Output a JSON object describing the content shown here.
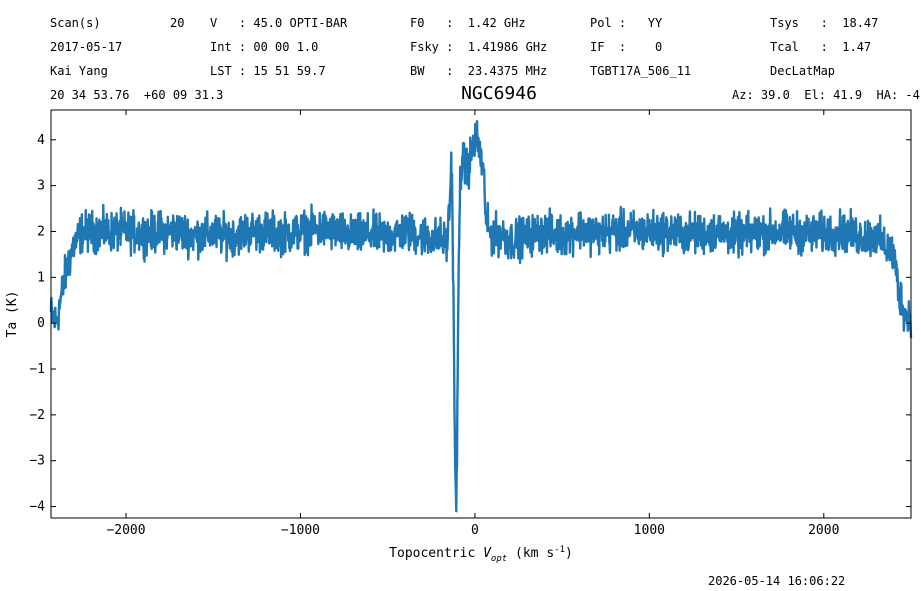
{
  "header": {
    "c1": [
      "Scan(s)",
      "2017-05-17",
      "Kai Yang",
      "20 34 53.76  +60 09 31.3"
    ],
    "scan_number": "20",
    "c2": [
      "V   : 45.0 OPTI-BAR",
      "Int : 00 00 1.0",
      "LST : 15 51 59.7"
    ],
    "c3": [
      "F0   :  1.42 GHz",
      "Fsky :  1.41986 GHz",
      "BW   :  23.4375 MHz"
    ],
    "c4": [
      "Pol :   YY",
      "IF  :    0",
      "TGBT17A_506_11"
    ],
    "c5": [
      "Tsys   :  18.47",
      "Tcal   :  1.47",
      "DecLatMap"
    ],
    "azel": "Az: 39.0  El: 41.9  HA: -4"
  },
  "footer": {
    "timestamp": "2026-05-14 16:06:22"
  },
  "chart_data": {
    "type": "line",
    "title": "NGC6946",
    "xlabel": "Topocentric V_opt (km s^-1)",
    "ylabel": "Ta (K)",
    "xlim": [
      -2430,
      2500
    ],
    "ylim": [
      -4.25,
      4.65
    ],
    "xticks": [
      -2000,
      -1000,
      0,
      1000,
      2000
    ],
    "xtick_labels": [
      "−2000",
      "−1000",
      "0",
      "1000",
      "2000"
    ],
    "yticks": [
      -4,
      -3,
      -2,
      -1,
      0,
      1,
      2,
      3,
      4
    ],
    "ytick_labels": [
      "−4",
      "−3",
      "−2",
      "−1",
      "0",
      "1",
      "2",
      "3",
      "4"
    ],
    "grid": false,
    "line_color": "#1f77b4",
    "series": [
      {
        "x": [
          -2430,
          -2400,
          -2370,
          -2340,
          -2300,
          -2250,
          -2200,
          -2100,
          -2000,
          -1900,
          -1800,
          -1700,
          -1600,
          -1500,
          -1400,
          -1300,
          -1200,
          -1100,
          -1000,
          -900,
          -800,
          -700,
          -600,
          -500,
          -400,
          -300,
          -200,
          -160,
          -145,
          -135,
          -128,
          -120,
          -112,
          -105,
          -98,
          -92,
          -85,
          -75,
          -60,
          -40,
          -20,
          0,
          20,
          40,
          55,
          65,
          80,
          100,
          150,
          200,
          300,
          400,
          500,
          600,
          700,
          800,
          900,
          1000,
          1100,
          1200,
          1300,
          1400,
          1500,
          1600,
          1700,
          1800,
          1900,
          2000,
          2100,
          2200,
          2300,
          2350,
          2400,
          2430,
          2460,
          2480,
          2500
        ],
        "y": [
          0.2,
          0.0,
          0.6,
          1.2,
          1.7,
          2.0,
          2.0,
          2.0,
          2.0,
          1.95,
          2.0,
          2.0,
          1.9,
          1.95,
          1.9,
          2.0,
          2.0,
          1.95,
          2.0,
          2.05,
          2.0,
          1.9,
          1.95,
          1.9,
          2.0,
          1.9,
          1.85,
          1.75,
          2.5,
          3.6,
          2.2,
          -0.4,
          -3.8,
          -3.7,
          -1.0,
          1.5,
          3.0,
          3.6,
          3.4,
          3.4,
          3.7,
          4.0,
          3.9,
          3.5,
          3.0,
          2.2,
          2.0,
          1.9,
          1.95,
          1.8,
          1.9,
          2.0,
          1.9,
          2.05,
          1.95,
          2.0,
          2.0,
          2.0,
          2.0,
          1.95,
          1.95,
          2.0,
          1.9,
          1.95,
          2.0,
          2.0,
          1.95,
          1.95,
          2.0,
          1.9,
          1.9,
          1.7,
          1.5,
          0.7,
          0.3,
          0.1,
          0.2
        ]
      }
    ]
  }
}
